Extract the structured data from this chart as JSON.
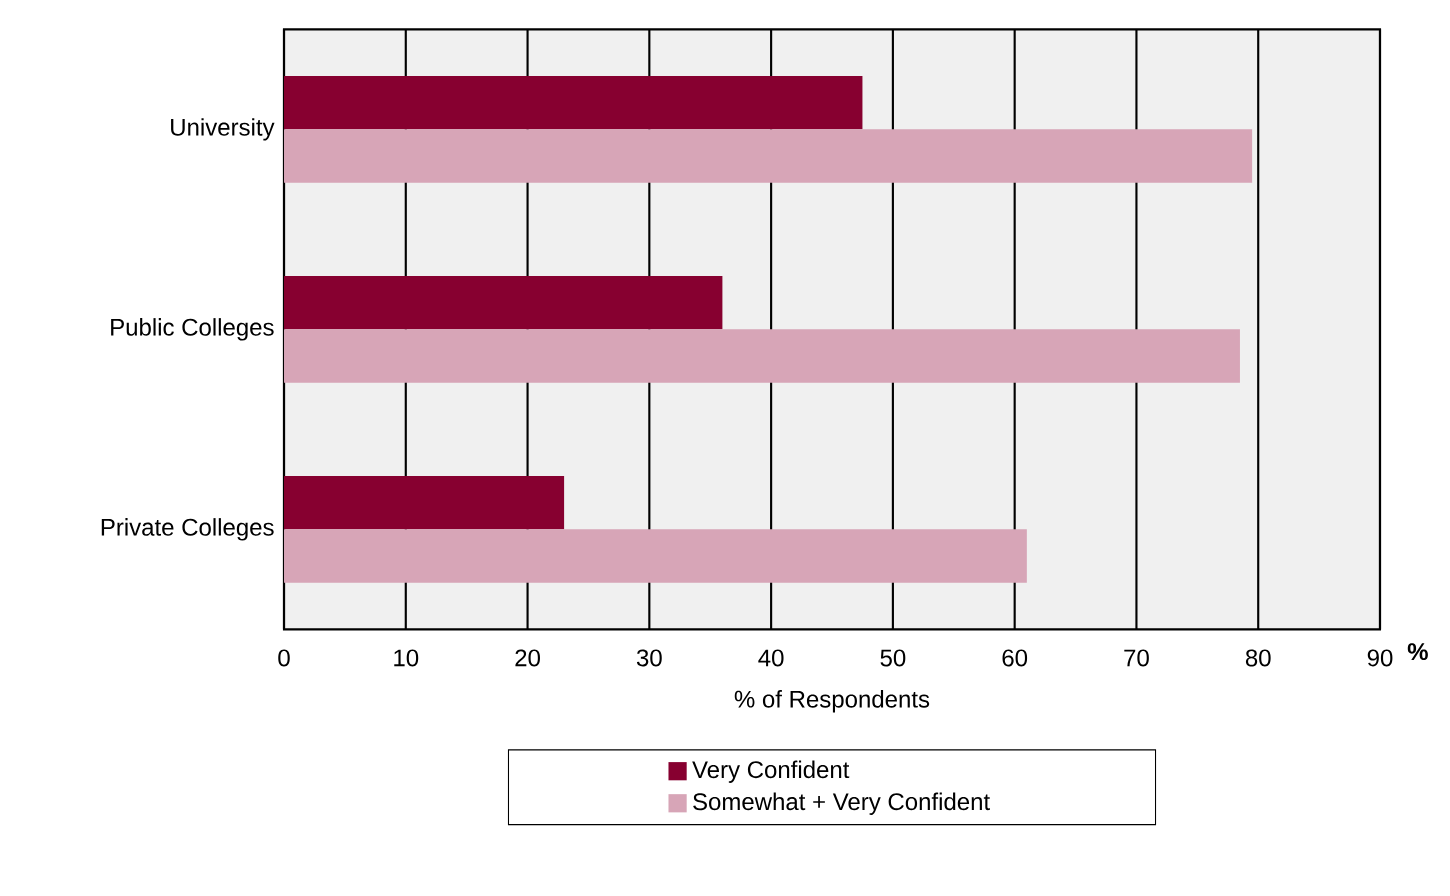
{
  "chart_data": {
    "type": "bar",
    "orientation": "horizontal",
    "xlabel": "% of Respondents",
    "categories": [
      "University",
      "Public Colleges",
      "Private Colleges"
    ],
    "series": [
      {
        "name": "Very Confident",
        "color": "#870030",
        "values": [
          47.5,
          36,
          23
        ]
      },
      {
        "name": "Somewhat + Very Confident",
        "color": "#d7a5b7",
        "values": [
          79.5,
          78.5,
          61
        ]
      }
    ],
    "xlim": [
      0,
      90
    ],
    "xticks": [
      0,
      10,
      20,
      30,
      40,
      50,
      60,
      70,
      80,
      90
    ],
    "annotations": [
      "%"
    ],
    "grid": "x",
    "legend": "bottom"
  }
}
